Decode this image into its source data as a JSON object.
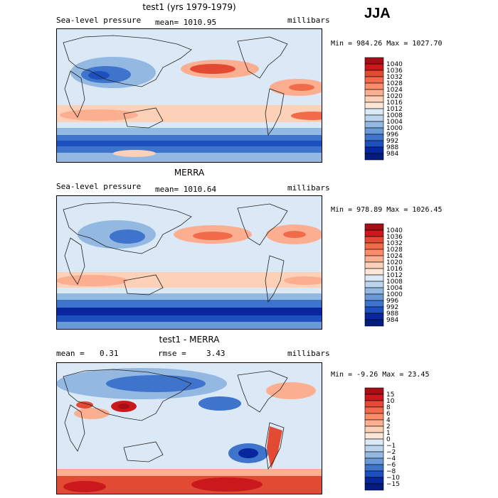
{
  "season": "JJA",
  "chart_data": [
    {
      "type": "heatmap",
      "title": "test1 (yrs 1979-1979)",
      "variable": "Sea-level pressure",
      "stat_text": "mean= 1010.95",
      "units": "millibars",
      "minmax_text": "Min = 984.26 Max = 1027.70",
      "min": 984.26,
      "max": 1027.7,
      "colorbar_levels": [
        "1040",
        "1036",
        "1032",
        "1028",
        "1024",
        "1020",
        "1016",
        "1012",
        "1008",
        "1004",
        "1000",
        "996",
        "992",
        "988",
        "984"
      ],
      "colorbar_colors": [
        "#a50f15",
        "#cb181d",
        "#e34a33",
        "#f16b4a",
        "#fc8d6a",
        "#fcae91",
        "#fdd0b8",
        "#fbe6d8",
        "#dbe9f6",
        "#bcd5ee",
        "#93b9e3",
        "#6a99d8",
        "#3e74cc",
        "#1d4fbf",
        "#08269e",
        "#041c80"
      ]
    },
    {
      "type": "heatmap",
      "title": "MERRA",
      "variable": "Sea-level pressure",
      "stat_text": "mean= 1010.64",
      "units": "millibars",
      "minmax_text": "Min = 978.89 Max = 1026.45",
      "min": 978.89,
      "max": 1026.45,
      "colorbar_levels": [
        "1040",
        "1036",
        "1032",
        "1028",
        "1024",
        "1020",
        "1016",
        "1012",
        "1008",
        "1004",
        "1000",
        "996",
        "992",
        "988",
        "984"
      ],
      "colorbar_colors": [
        "#a50f15",
        "#cb181d",
        "#e34a33",
        "#f16b4a",
        "#fc8d6a",
        "#fcae91",
        "#fdd0b8",
        "#fbe6d8",
        "#dbe9f6",
        "#bcd5ee",
        "#93b9e3",
        "#6a99d8",
        "#3e74cc",
        "#1d4fbf",
        "#08269e",
        "#041c80"
      ]
    },
    {
      "type": "heatmap",
      "title": "test1 - MERRA",
      "mean_label": "mean =",
      "mean_value": "0.31",
      "rmse_label": "rmse =",
      "rmse_value": "3.43",
      "units": "millibars",
      "minmax_text": "Min =  -9.26 Max =  23.45",
      "min": -9.26,
      "max": 23.45,
      "colorbar_levels": [
        "15",
        "10",
        "8",
        "6",
        "4",
        "2",
        "1",
        "0",
        "−1",
        "−2",
        "−4",
        "−6",
        "−8",
        "−10",
        "−15"
      ],
      "colorbar_colors": [
        "#a50f15",
        "#cb181d",
        "#e34a33",
        "#f16b4a",
        "#fc8d6a",
        "#fcae91",
        "#fdd0b8",
        "#fbe6d8",
        "#dbe9f6",
        "#bcd5ee",
        "#93b9e3",
        "#6a99d8",
        "#3e74cc",
        "#1d4fbf",
        "#08269e",
        "#041c80"
      ]
    }
  ]
}
